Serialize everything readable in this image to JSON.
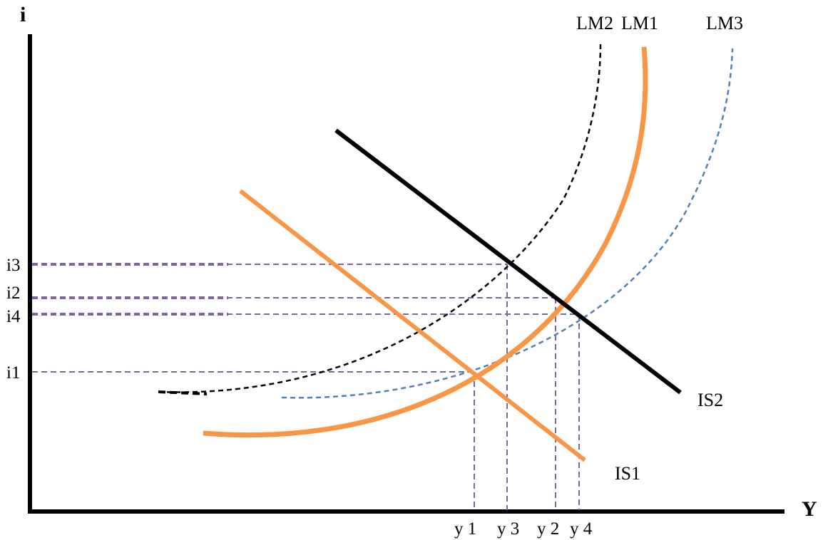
{
  "diagram": {
    "y_axis_label": "i",
    "x_axis_label": "Y",
    "curves": {
      "lm1": "LM1",
      "lm2": "LM2",
      "lm3": "LM3",
      "is1": "IS1",
      "is2": "IS2"
    },
    "interest_levels": [
      "i3",
      "i2",
      "i4",
      "i1"
    ],
    "output_levels": [
      "y 1",
      "y 3",
      "y 2",
      "y 4"
    ],
    "colors": {
      "axis": "#000000",
      "lm1": "#F79646",
      "lm2": "#000000",
      "lm3": "#4F81BD",
      "is1": "#F79646",
      "is2": "#000000",
      "guide": "#8064A2"
    }
  }
}
